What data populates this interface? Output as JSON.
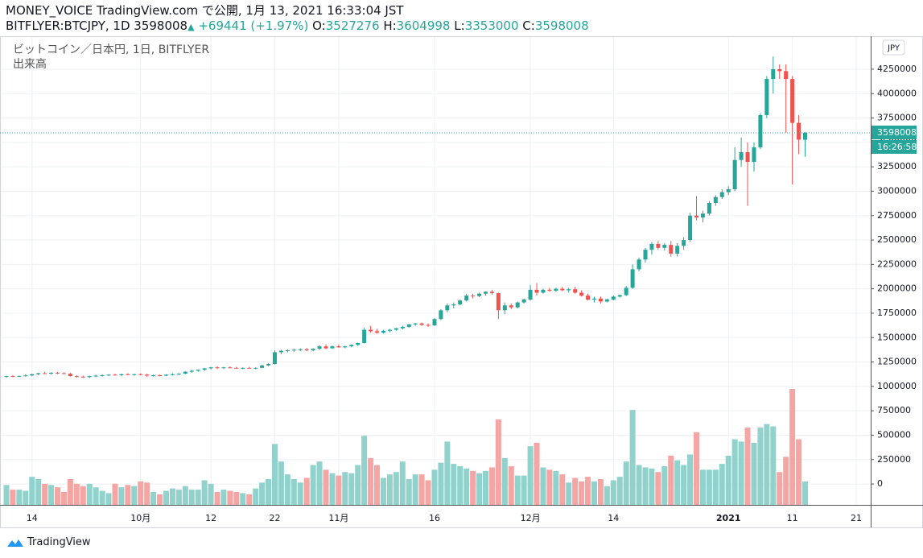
{
  "header": {
    "line1": "MONEY_VOICE TradingView.com で公開, 1月 13, 2021 16:33:04 JST",
    "symbol": "BITFLYER:BTCJPY, 1D",
    "arrow": "▲",
    "change": "+69441 (+1.97%)",
    "o": "O:",
    "h": "H:",
    "l": "L:",
    "c": "C:"
  },
  "chart_data": {
    "type": "candlestick",
    "series_name": "ビットコイン／日本円, 1日, BITFLYER",
    "volume_name": "出来高",
    "currency": "JPY",
    "countdown": "16:26:58",
    "up_color": "#26a69a",
    "down_color": "#ef5350",
    "volume_up_color": "#92d2cc",
    "volume_down_color": "#f5a5a3",
    "grid": true,
    "categories": [
      null,
      null,
      null,
      null,
      "14",
      null,
      null,
      null,
      null,
      null,
      null,
      null,
      null,
      null,
      null,
      null,
      null,
      null,
      null,
      null,
      null,
      "10月",
      null,
      null,
      null,
      null,
      null,
      null,
      null,
      null,
      null,
      null,
      "12",
      null,
      null,
      null,
      null,
      null,
      null,
      null,
      null,
      null,
      "22",
      null,
      null,
      null,
      null,
      null,
      null,
      null,
      null,
      null,
      "11月",
      null,
      null,
      null,
      null,
      null,
      null,
      null,
      null,
      null,
      null,
      null,
      null,
      null,
      null,
      "16",
      null,
      null,
      null,
      null,
      null,
      null,
      null,
      null,
      null,
      null,
      null,
      null,
      null,
      null,
      "12月",
      null,
      null,
      null,
      null,
      null,
      null,
      null,
      null,
      null,
      null,
      null,
      null,
      "14",
      null,
      null,
      null,
      null,
      null,
      null,
      null,
      null,
      null,
      null,
      null,
      null,
      null,
      null,
      null,
      null,
      null,
      "2021",
      null,
      null,
      null,
      null,
      null,
      null,
      null,
      null,
      null,
      "11",
      null,
      null,
      null,
      null,
      null,
      null,
      null,
      null,
      null,
      "21",
      null,
      null
    ],
    "open": [
      1100000,
      1105000,
      1100000,
      1108000,
      1112000,
      1125000,
      1135000,
      1130000,
      1140000,
      1135000,
      1130000,
      1105000,
      1100000,
      1095000,
      1105000,
      1110000,
      1115000,
      1120000,
      1115000,
      1125000,
      1120000,
      1125000,
      1120000,
      1110000,
      1115000,
      1110000,
      1120000,
      1125000,
      1130000,
      1150000,
      1160000,
      1170000,
      1185000,
      1195000,
      1190000,
      1195000,
      1190000,
      1185000,
      1190000,
      1185000,
      1190000,
      1215000,
      1230000,
      1350000,
      1365000,
      1370000,
      1375000,
      1380000,
      1370000,
      1385000,
      1410000,
      1390000,
      1410000,
      1400000,
      1410000,
      1425000,
      1445000,
      1580000,
      1565000,
      1550000,
      1570000,
      1580000,
      1595000,
      1610000,
      1635000,
      1645000,
      1630000,
      1625000,
      1690000,
      1780000,
      1830000,
      1840000,
      1880000,
      1930000,
      1925000,
      1950000,
      1970000,
      1955000,
      1780000,
      1830000,
      1810000,
      1860000,
      1890000,
      1990000,
      1960000,
      1990000,
      1980000,
      2000000,
      1985000,
      1995000,
      1960000,
      1930000,
      1890000,
      1900000,
      1870000,
      1890000,
      1920000,
      1935000,
      2010000,
      2200000,
      2300000,
      2400000,
      2460000,
      2420000,
      2450000,
      2360000,
      2440000,
      2500000,
      2750000,
      2730000,
      2770000,
      2880000,
      2940000,
      2990000,
      3020000,
      3320000,
      3400000,
      3300000,
      3450000,
      3780000,
      4150000,
      4250000,
      4230000,
      4150000,
      3700000,
      3527276,
      null,
      null,
      null,
      null,
      null,
      null,
      null,
      null,
      null,
      null
    ],
    "high": [
      1110000,
      1115000,
      1110000,
      1125000,
      1130000,
      1140000,
      1150000,
      1145000,
      1150000,
      1145000,
      1140000,
      1115000,
      1110000,
      1110000,
      1120000,
      1125000,
      1125000,
      1130000,
      1130000,
      1135000,
      1130000,
      1135000,
      1130000,
      1120000,
      1120000,
      1125000,
      1135000,
      1135000,
      1155000,
      1170000,
      1175000,
      1190000,
      1200000,
      1205000,
      1200000,
      1205000,
      1200000,
      1195000,
      1200000,
      1195000,
      1220000,
      1240000,
      1370000,
      1375000,
      1380000,
      1385000,
      1390000,
      1395000,
      1390000,
      1420000,
      1430000,
      1420000,
      1430000,
      1415000,
      1430000,
      1450000,
      1600000,
      1620000,
      1590000,
      1580000,
      1590000,
      1600000,
      1620000,
      1640000,
      1650000,
      1655000,
      1645000,
      1700000,
      1790000,
      1850000,
      1860000,
      1890000,
      1950000,
      1950000,
      1960000,
      1975000,
      1990000,
      1960000,
      1860000,
      1850000,
      1870000,
      1900000,
      2040000,
      2060000,
      2000000,
      2010000,
      2010000,
      2020000,
      2010000,
      2020000,
      1985000,
      1950000,
      1920000,
      1920000,
      1900000,
      1930000,
      1940000,
      2030000,
      2250000,
      2320000,
      2420000,
      2480000,
      2490000,
      2470000,
      2490000,
      2470000,
      2530000,
      2780000,
      2950000,
      2800000,
      2900000,
      2960000,
      3020000,
      3050000,
      3450000,
      3550000,
      3500000,
      3500000,
      3800000,
      4180000,
      4380000,
      4300000,
      4300000,
      4180000,
      3780000,
      3604998,
      null,
      null,
      null,
      null,
      null,
      null,
      null,
      null,
      null,
      null
    ],
    "low": [
      1090000,
      1095000,
      1095000,
      1100000,
      1105000,
      1115000,
      1125000,
      1120000,
      1125000,
      1125000,
      1100000,
      1090000,
      1085000,
      1085000,
      1095000,
      1100000,
      1105000,
      1110000,
      1105000,
      1115000,
      1110000,
      1115000,
      1100000,
      1100000,
      1105000,
      1105000,
      1110000,
      1115000,
      1125000,
      1140000,
      1150000,
      1160000,
      1175000,
      1180000,
      1180000,
      1185000,
      1180000,
      1175000,
      1180000,
      1175000,
      1185000,
      1205000,
      1225000,
      1330000,
      1350000,
      1355000,
      1360000,
      1360000,
      1360000,
      1375000,
      1380000,
      1385000,
      1395000,
      1390000,
      1400000,
      1415000,
      1440000,
      1550000,
      1540000,
      1540000,
      1555000,
      1570000,
      1585000,
      1600000,
      1620000,
      1620000,
      1610000,
      1620000,
      1680000,
      1760000,
      1800000,
      1830000,
      1870000,
      1900000,
      1915000,
      1930000,
      1940000,
      1690000,
      1740000,
      1790000,
      1800000,
      1850000,
      1880000,
      1930000,
      1950000,
      1970000,
      1970000,
      1975000,
      1960000,
      1950000,
      1920000,
      1880000,
      1860000,
      1850000,
      1860000,
      1880000,
      1910000,
      1925000,
      2000000,
      2180000,
      2270000,
      2350000,
      2400000,
      2390000,
      2330000,
      2330000,
      2400000,
      2480000,
      2700000,
      2680000,
      2750000,
      2850000,
      2920000,
      2960000,
      3000000,
      3250000,
      2850000,
      3200000,
      3430000,
      3750000,
      4000000,
      4150000,
      3600000,
      3070000,
      3380000,
      3353000,
      null,
      null,
      null,
      null,
      null,
      null,
      null,
      null,
      null,
      null
    ],
    "close": [
      1105000,
      1100000,
      1108000,
      1112000,
      1125000,
      1135000,
      1130000,
      1140000,
      1135000,
      1130000,
      1105000,
      1100000,
      1095000,
      1105000,
      1110000,
      1115000,
      1120000,
      1115000,
      1125000,
      1120000,
      1125000,
      1120000,
      1110000,
      1115000,
      1110000,
      1120000,
      1125000,
      1130000,
      1150000,
      1160000,
      1170000,
      1185000,
      1195000,
      1190000,
      1195000,
      1190000,
      1185000,
      1190000,
      1185000,
      1190000,
      1215000,
      1230000,
      1350000,
      1365000,
      1370000,
      1375000,
      1380000,
      1370000,
      1385000,
      1410000,
      1390000,
      1410000,
      1400000,
      1410000,
      1425000,
      1445000,
      1580000,
      1565000,
      1550000,
      1570000,
      1580000,
      1595000,
      1610000,
      1635000,
      1645000,
      1630000,
      1625000,
      1690000,
      1780000,
      1830000,
      1840000,
      1880000,
      1930000,
      1925000,
      1950000,
      1970000,
      1955000,
      1780000,
      1830000,
      1810000,
      1860000,
      1890000,
      1990000,
      1960000,
      1990000,
      1980000,
      2000000,
      1985000,
      1995000,
      1960000,
      1930000,
      1890000,
      1900000,
      1870000,
      1890000,
      1920000,
      1935000,
      2010000,
      2200000,
      2300000,
      2400000,
      2460000,
      2420000,
      2450000,
      2360000,
      2440000,
      2500000,
      2750000,
      2730000,
      2770000,
      2880000,
      2940000,
      2990000,
      3020000,
      3320000,
      3400000,
      3300000,
      3450000,
      3780000,
      4150000,
      4250000,
      4230000,
      4150000,
      3700000,
      3528567,
      3598008,
      null,
      null,
      null,
      null,
      null,
      null,
      null,
      null,
      null,
      null
    ],
    "volume": [
      1700,
      1300,
      1300,
      1200,
      2400,
      2200,
      1800,
      1700,
      1500,
      1100,
      2200,
      1800,
      1600,
      1800,
      1500,
      1200,
      1000,
      1800,
      1500,
      1700,
      1600,
      2000,
      1900,
      1100,
      900,
      1200,
      1400,
      1300,
      1600,
      1300,
      1300,
      2100,
      1800,
      1100,
      1300,
      1200,
      1100,
      1000,
      900,
      1400,
      1900,
      2200,
      5200,
      3700,
      2600,
      2200,
      1900,
      2300,
      3400,
      3700,
      3000,
      2700,
      2500,
      2800,
      2700,
      3400,
      5900,
      4000,
      3400,
      2300,
      2600,
      2800,
      3700,
      2200,
      2600,
      2600,
      2100,
      3000,
      3600,
      5400,
      3500,
      3300,
      3100,
      2900,
      2700,
      2900,
      3200,
      7300,
      4000,
      3300,
      2500,
      2500,
      5000,
      5300,
      3200,
      3000,
      2900,
      2600,
      1900,
      2300,
      2000,
      2400,
      2000,
      2200,
      1600,
      2100,
      2400,
      3700,
      8100,
      3400,
      3200,
      3100,
      2800,
      3300,
      4200,
      3800,
      3400,
      4300,
      6200,
      3000,
      3000,
      3000,
      3500,
      4200,
      5600,
      5400,
      6600,
      5300,
      6600,
      6900,
      6700,
      2800,
      4100,
      9900,
      5600,
      2000,
      null,
      null,
      null,
      null,
      null,
      null,
      null,
      null,
      null,
      null
    ],
    "ylim": [
      -214000,
      4588000
    ],
    "y2lim": [
      0,
      40000
    ],
    "yticks": [
      0,
      250000,
      500000,
      750000,
      1000000,
      1250000,
      1500000,
      1750000,
      2000000,
      2250000,
      2500000,
      2750000,
      3000000,
      3250000,
      3500000,
      3750000,
      4000000,
      4250000
    ]
  },
  "footer": {
    "brand": "TradingView"
  }
}
